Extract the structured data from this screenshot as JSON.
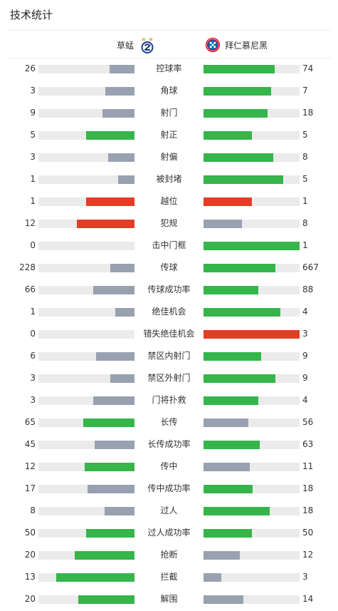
{
  "page_title": "技术统计",
  "teams": {
    "home": {
      "name": "草蜢",
      "badge_icon": "grasshopper-club-icon"
    },
    "away": {
      "name": "拜仁慕尼黑",
      "badge_icon": "bayern-munich-icon"
    }
  },
  "colors": {
    "green": "#35b54a",
    "gray": "#98a1b0",
    "red": "#e23d25",
    "track": "#ebebeb"
  },
  "stats": [
    {
      "label": "控球率",
      "home": "26",
      "away": "74",
      "home_ratio": 0.26,
      "away_ratio": 0.74,
      "home_color": "gray",
      "away_color": "green"
    },
    {
      "label": "角球",
      "home": "3",
      "away": "7",
      "home_ratio": 0.3,
      "away_ratio": 0.7,
      "home_color": "gray",
      "away_color": "green"
    },
    {
      "label": "射门",
      "home": "9",
      "away": "18",
      "home_ratio": 0.333,
      "away_ratio": 0.667,
      "home_color": "gray",
      "away_color": "green"
    },
    {
      "label": "射正",
      "home": "5",
      "away": "5",
      "home_ratio": 0.5,
      "away_ratio": 0.5,
      "home_color": "green",
      "away_color": "green"
    },
    {
      "label": "射偏",
      "home": "3",
      "away": "8",
      "home_ratio": 0.273,
      "away_ratio": 0.727,
      "home_color": "gray",
      "away_color": "green"
    },
    {
      "label": "被封堵",
      "home": "1",
      "away": "5",
      "home_ratio": 0.167,
      "away_ratio": 0.833,
      "home_color": "gray",
      "away_color": "green"
    },
    {
      "label": "越位",
      "home": "1",
      "away": "1",
      "home_ratio": 0.5,
      "away_ratio": 0.5,
      "home_color": "red",
      "away_color": "red"
    },
    {
      "label": "犯规",
      "home": "12",
      "away": "8",
      "home_ratio": 0.6,
      "away_ratio": 0.4,
      "home_color": "red",
      "away_color": "gray"
    },
    {
      "label": "击中门框",
      "home": "0",
      "away": "1",
      "home_ratio": 0,
      "away_ratio": 1,
      "home_color": "gray",
      "away_color": "green"
    },
    {
      "label": "传球",
      "home": "228",
      "away": "667",
      "home_ratio": 0.255,
      "away_ratio": 0.745,
      "home_color": "gray",
      "away_color": "green"
    },
    {
      "label": "传球成功率",
      "home": "66",
      "away": "88",
      "home_ratio": 0.429,
      "away_ratio": 0.571,
      "home_color": "gray",
      "away_color": "green"
    },
    {
      "label": "绝佳机会",
      "home": "1",
      "away": "4",
      "home_ratio": 0.2,
      "away_ratio": 0.8,
      "home_color": "gray",
      "away_color": "green"
    },
    {
      "label": "错失绝佳机会",
      "home": "0",
      "away": "3",
      "home_ratio": 0,
      "away_ratio": 1,
      "home_color": "gray",
      "away_color": "red"
    },
    {
      "label": "禁区内射门",
      "home": "6",
      "away": "9",
      "home_ratio": 0.4,
      "away_ratio": 0.6,
      "home_color": "gray",
      "away_color": "green"
    },
    {
      "label": "禁区外射门",
      "home": "3",
      "away": "9",
      "home_ratio": 0.25,
      "away_ratio": 0.75,
      "home_color": "gray",
      "away_color": "green"
    },
    {
      "label": "门将扑救",
      "home": "3",
      "away": "4",
      "home_ratio": 0.429,
      "away_ratio": 0.571,
      "home_color": "gray",
      "away_color": "green"
    },
    {
      "label": "长传",
      "home": "65",
      "away": "56",
      "home_ratio": 0.537,
      "away_ratio": 0.463,
      "home_color": "green",
      "away_color": "gray"
    },
    {
      "label": "长传成功率",
      "home": "45",
      "away": "63",
      "home_ratio": 0.417,
      "away_ratio": 0.583,
      "home_color": "gray",
      "away_color": "green"
    },
    {
      "label": "传中",
      "home": "12",
      "away": "11",
      "home_ratio": 0.522,
      "away_ratio": 0.478,
      "home_color": "green",
      "away_color": "gray"
    },
    {
      "label": "传中成功率",
      "home": "17",
      "away": "18",
      "home_ratio": 0.486,
      "away_ratio": 0.514,
      "home_color": "gray",
      "away_color": "green"
    },
    {
      "label": "过人",
      "home": "8",
      "away": "18",
      "home_ratio": 0.308,
      "away_ratio": 0.692,
      "home_color": "gray",
      "away_color": "green"
    },
    {
      "label": "过人成功率",
      "home": "50",
      "away": "50",
      "home_ratio": 0.5,
      "away_ratio": 0.5,
      "home_color": "green",
      "away_color": "green"
    },
    {
      "label": "抢断",
      "home": "20",
      "away": "12",
      "home_ratio": 0.625,
      "away_ratio": 0.375,
      "home_color": "green",
      "away_color": "gray"
    },
    {
      "label": "拦截",
      "home": "13",
      "away": "3",
      "home_ratio": 0.8125,
      "away_ratio": 0.1875,
      "home_color": "green",
      "away_color": "gray"
    },
    {
      "label": "解围",
      "home": "20",
      "away": "14",
      "home_ratio": 0.588,
      "away_ratio": 0.412,
      "home_color": "green",
      "away_color": "gray"
    }
  ]
}
